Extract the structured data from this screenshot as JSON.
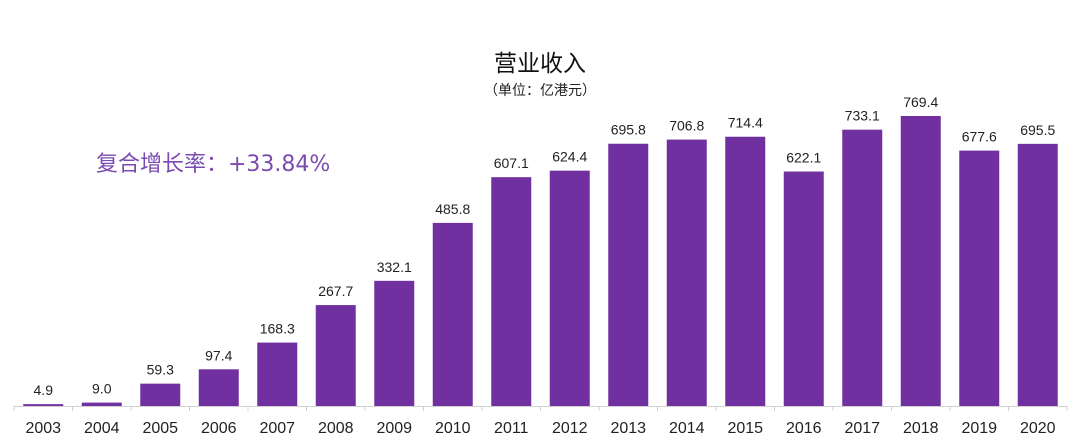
{
  "chart_data": {
    "type": "bar",
    "title": "营业收入",
    "subtitle": "（单位：亿港元）",
    "annotation": "复合增长率：+33.84%",
    "categories": [
      "2003",
      "2004",
      "2005",
      "2006",
      "2007",
      "2008",
      "2009",
      "2010",
      "2011",
      "2012",
      "2013",
      "2014",
      "2015",
      "2016",
      "2017",
      "2018",
      "2019",
      "2020"
    ],
    "values": [
      4.9,
      9.0,
      59.3,
      97.4,
      168.3,
      267.7,
      332.1,
      485.8,
      607.1,
      624.4,
      695.8,
      706.8,
      714.4,
      622.1,
      733.1,
      769.4,
      677.6,
      695.5
    ],
    "value_labels": [
      "4.9",
      "9.0",
      "59.3",
      "97.4",
      "168.3",
      "267.7",
      "332.1",
      "485.8",
      "607.1",
      "624.4",
      "695.8",
      "706.8",
      "714.4",
      "622.1",
      "733.1",
      "769.4",
      "677.6",
      "695.5"
    ],
    "ylim": [
      0,
      769.4
    ],
    "grid": false,
    "colors": {
      "bar": "#7030A0",
      "annotation": "#7A4BB0",
      "axis": "#D0D0D0"
    }
  }
}
